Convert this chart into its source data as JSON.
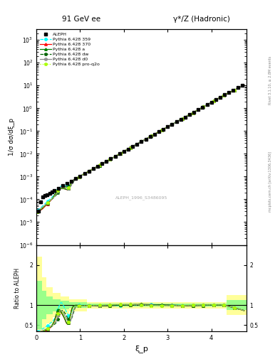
{
  "title_left": "91 GeV ee",
  "title_right": "γ*/Z (Hadronic)",
  "ylabel_main": "1/σ dσ/dξ_p",
  "ylabel_ratio": "Ratio to ALEPH",
  "xlabel": "ξ_p",
  "watermark": "ALEPH_1996_S3486095",
  "right_label_top": "Rivet 3.1.10, ≥ 2.8M events",
  "right_label_bottom": "mcplots.cern.ch [arXiv:1306.3436]",
  "ylim_main": [
    1e-06,
    3000.0
  ],
  "ylim_ratio": [
    0.35,
    2.5
  ],
  "xlim": [
    0.0,
    4.8
  ],
  "background_color": "white",
  "band_yellow": "#ffff88",
  "band_green": "#88ff88"
}
